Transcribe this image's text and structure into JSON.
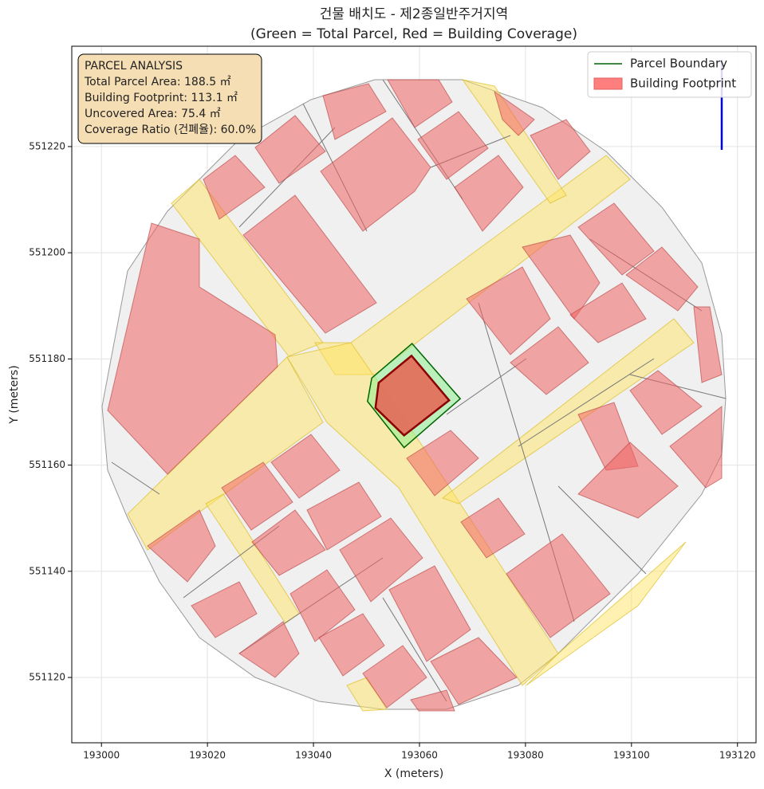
{
  "chart_data": {
    "type": "polygon",
    "title": "건물 배치도 - 제2종일반주거지역",
    "subtitle": "(Green = Total Parcel, Red = Building Coverage)",
    "x_label": "X (meters)",
    "y_label": "Y (meters)",
    "xlim": [
      192994.4,
      193123.5
    ],
    "ylim": [
      551107.7,
      551238.9
    ],
    "xticks": [
      193000,
      193020,
      193040,
      193060,
      193080,
      193100,
      193120
    ],
    "yticks": [
      551120,
      551140,
      551160,
      551180,
      551200,
      551220
    ],
    "grid": true,
    "legend": "upper right",
    "series": [
      {
        "name": "Parcel Boundary",
        "color": "#006400",
        "fill": "#90ee90",
        "x": [
          193051.0,
          193058.6,
          193067.7,
          193057.1,
          193050.2
        ],
        "y": [
          551176.4,
          551182.9,
          551172.5,
          551163.3,
          551172.0
        ]
      },
      {
        "name": "Building Footprint",
        "color": "#ff7f7f",
        "fill": "#e0705c",
        "x": [
          193052.3,
          193058.5,
          193065.6,
          193057.1,
          193051.7
        ],
        "y": [
          551175.5,
          551180.6,
          551172.2,
          551165.6,
          551170.8
        ]
      }
    ],
    "annotation": [
      "PARCEL ANALYSIS",
      "Total Parcel Area: 188.5 ㎡",
      "Building Footprint: 113.1 ㎡",
      "Uncovered Area: 75.4 ㎡",
      "Coverage Ratio (건폐율): 60.0%"
    ]
  }
}
